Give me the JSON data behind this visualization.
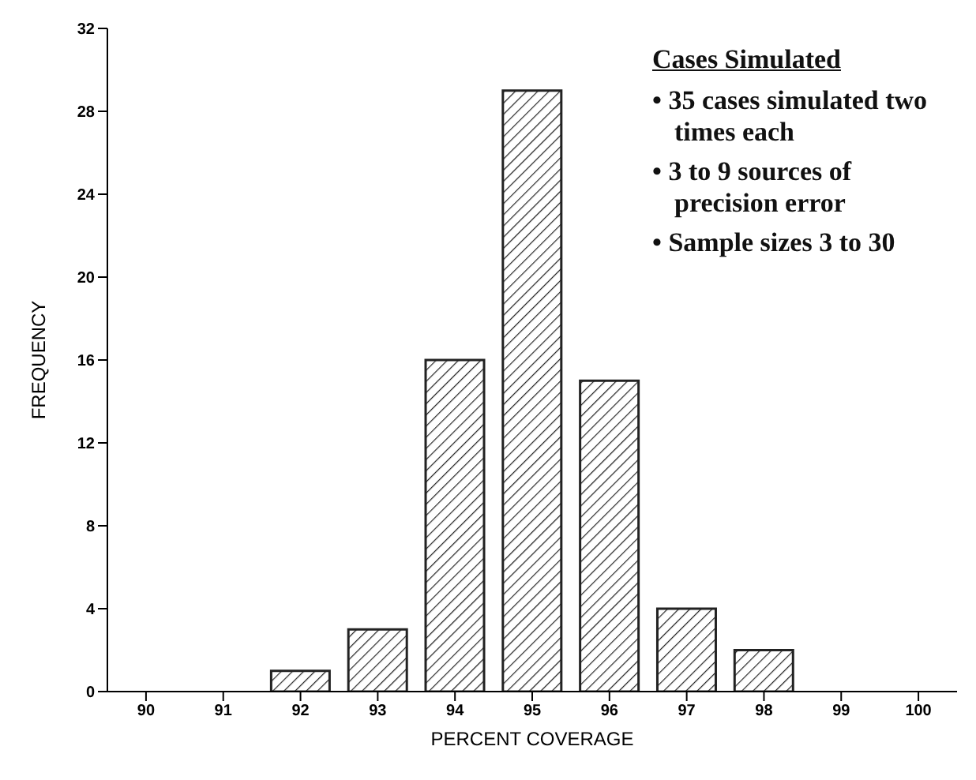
{
  "chart_data": {
    "type": "bar",
    "xlabel": "PERCENT COVERAGE",
    "ylabel": "FREQUENCY",
    "categories": [
      "90",
      "91",
      "92",
      "93",
      "94",
      "95",
      "96",
      "97",
      "98",
      "99",
      "100"
    ],
    "values": [
      0,
      0,
      1,
      3,
      16,
      29,
      15,
      4,
      2,
      0,
      0
    ],
    "color": "#222222",
    "ylim": [
      0,
      32
    ],
    "yticks": [
      0,
      4,
      8,
      12,
      16,
      20,
      24,
      28,
      32
    ],
    "grid": false,
    "legend": false,
    "annotations": [
      "Cases Simulated",
      "• 35 cases simulated two times each",
      "• 3 to 9 sources of precision error",
      "• Sample sizes 3 to 30"
    ]
  }
}
